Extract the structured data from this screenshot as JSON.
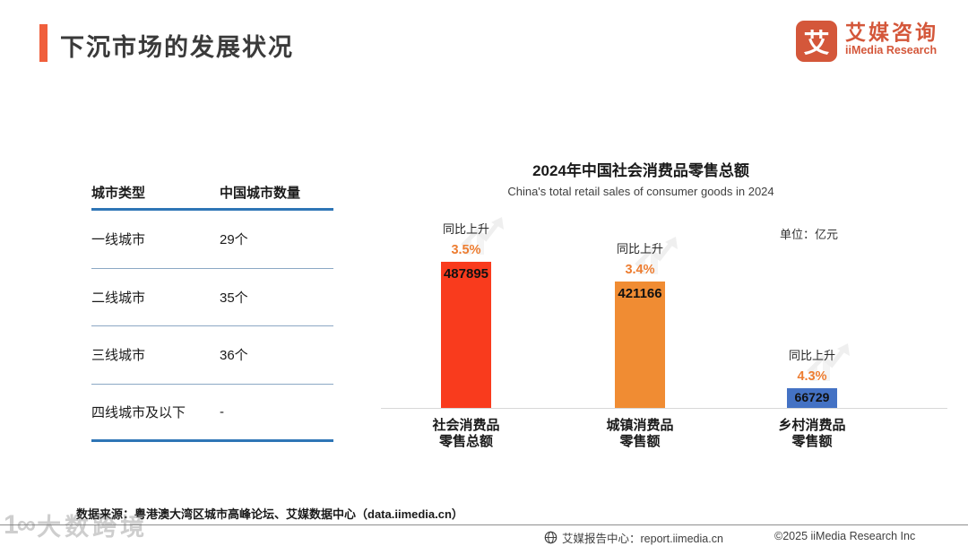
{
  "page": {
    "title": "下沉市场的发展状况"
  },
  "logo": {
    "icon_char": "艾",
    "name_cn": "艾媒咨询",
    "name_en": "iiMedia Research"
  },
  "city_table": {
    "headers": [
      "城市类型",
      "中国城市数量"
    ],
    "rows": [
      {
        "type": "一线城市",
        "count": "29个"
      },
      {
        "type": "二线城市",
        "count": "35个"
      },
      {
        "type": "三线城市",
        "count": "36个"
      },
      {
        "type": "四线城市及以下",
        "count": "-"
      }
    ]
  },
  "chart_data": {
    "type": "bar",
    "title": "2024年中国社会消费品零售总额",
    "subtitle": "China's total retail sales of consumer goods in 2024",
    "unit_label": "单位：亿元",
    "categories": [
      [
        "社会消费品",
        "零售总额"
      ],
      [
        "城镇消费品",
        "零售额"
      ],
      [
        "乡村消费品",
        "零售额"
      ]
    ],
    "values": [
      487895,
      421166,
      66729
    ],
    "growth_label": "同比上升",
    "growth_values": [
      "3.5%",
      "3.4%",
      "4.3%"
    ],
    "bar_colors": [
      "#F93B1D",
      "#F08C33",
      "#4472C4"
    ],
    "value_label_color": "#111111",
    "growth_color": "#ED7D31",
    "ylim": [
      0,
      500000
    ],
    "grid": false,
    "legend": false
  },
  "footer": {
    "source": "数据来源：粤港澳大湾区城市高峰论坛、艾媒数据中心（data.iimedia.cn）",
    "report_center": "艾媒报告中心：report.iimedia.cn",
    "copyright": "©2025  iiMedia Research  Inc",
    "watermark_logo": "1∞",
    "watermark_text": "大数跨境"
  }
}
